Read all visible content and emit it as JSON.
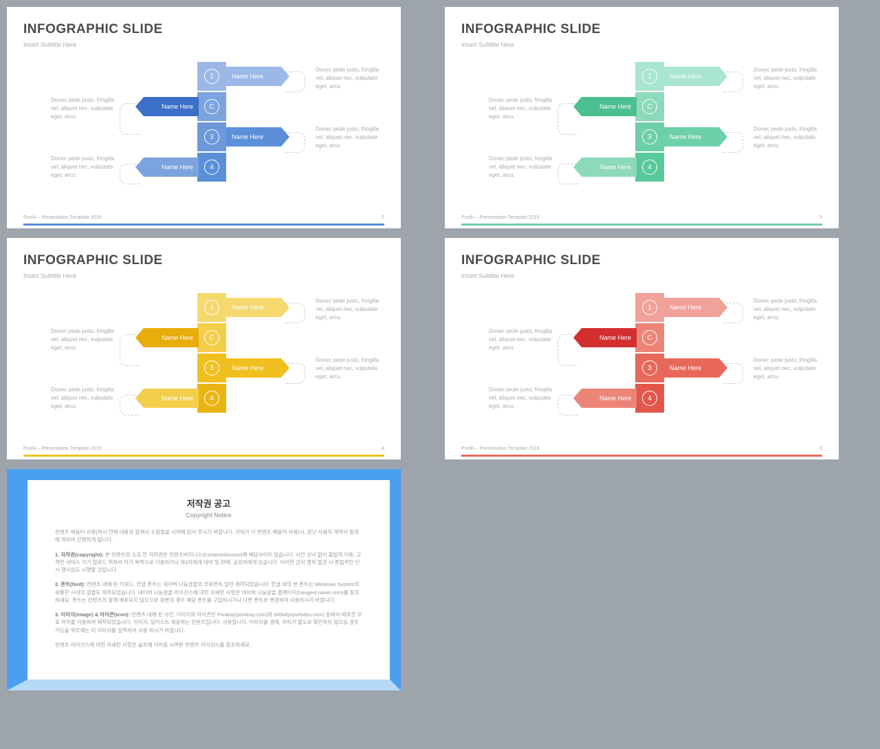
{
  "background_color": "#9ea4ab",
  "slide_common": {
    "title": "INFOGRAPHIC SLIDE",
    "subtitle": "Insert Subtitle Here",
    "footer": "Poziki – Presentation Template 2019",
    "placeholder_text": "Donec pede justo, fringilla vel, aliquet nec, vulputate eget, arcu.",
    "arrow_label": "Name Here"
  },
  "slides": [
    {
      "page_num": "2",
      "accent_line": "#5b8fd8",
      "num_box_colors": [
        "#9bb8e8",
        "#7ba3de",
        "#6d99da",
        "#5b8fd8"
      ],
      "arrow_colors": [
        "#9bb8e8",
        "#3b6fc8",
        "#5b8fd8",
        "#7ba3de"
      ],
      "numbers": [
        "1",
        "C",
        "3",
        "4"
      ]
    },
    {
      "page_num": "3",
      "accent_line": "#6ed0a8",
      "num_box_colors": [
        "#a8e6cf",
        "#8dd9bb",
        "#6ed0a8",
        "#58c99a"
      ],
      "arrow_colors": [
        "#a8e6cf",
        "#4cc090",
        "#6ed0a8",
        "#8dd9bb"
      ],
      "numbers": [
        "1",
        "C",
        "3",
        "4"
      ]
    },
    {
      "page_num": "4",
      "accent_line": "#f0c020",
      "num_box_colors": [
        "#f5d86e",
        "#f3ce4a",
        "#f0c020",
        "#eab512"
      ],
      "arrow_colors": [
        "#f5d86e",
        "#e8ad0a",
        "#f0c020",
        "#f3ce4a"
      ],
      "numbers": [
        "1",
        "C",
        "3",
        "4"
      ]
    },
    {
      "page_num": "5",
      "accent_line": "#e8695c",
      "num_box_colors": [
        "#f0a29a",
        "#ec8578",
        "#e8695c",
        "#e3564a"
      ],
      "arrow_colors": [
        "#f0a29a",
        "#d32f2f",
        "#e8695c",
        "#ec8578"
      ],
      "numbers": [
        "1",
        "C",
        "3",
        "4"
      ]
    }
  ],
  "copyright": {
    "border_top_color": "#4a9ff0",
    "border_bottom_color": "#b5d9f7",
    "title": "저작권 공고",
    "subtitle": "Copyright Notice",
    "para1": "컨텐츠 배움터 사용)하시 전에 내용과 함께서 소장법을 시켜에 읽어 주시기 바랍니다. 귀하가 이 컨텐츠 배움터 사용)시, 장난 사용자 계약서 동의에 의하여 진행하게 됩니다.",
    "para2_bold": "1. 저작권(copyright):",
    "para2": "본 컨텐츠의 소유 한 저작권은 컨텐츠비지니스(Contentsbizeow)에 해당사이트 있습니다. 사전 승낙 없이 불법적 이동, 고객한 서비스 가기 업로드 위하여 자기 목적으로 이용하거나 제3자에게 대여 및 판매, 공유하에게 있습니다. 이러한 금지 행위 발견 시 준법적인 단 시 행사심도 시행할 것입니다.",
    "para3_bold": "2. 폰트(font):",
    "para3": "컨텐츠 내에 된 키보드, 한글 폰트는 네이버 나눔글꼴의 무료폰트 일반 제작되었습니다. 한글 외의 본 폰트는 Windows System의 보통한 시내의 글꼴도 제작되었습니다. 네이버 나눔글꼴 라이선스에 대한 자세한 사항은 네이버 나눔글꼴 홈페이지(hangeul.naver.com)를 참조하세요. 폰트는 컨텐츠의 함께 배포되지 않으므로 원본의 경우 해당 폰트를 구입하시거나 다른 폰트로 변경하여 사용하시기 바랍니다.",
    "para4_bold": "3. 이미지(image) & 아이콘(icon):",
    "para4": "컨텐츠 내에 된 사진, 이미지와 아이콘은 Pixabay(pixabay.com)와 Webdys(webdys.com) 등에서 배포한 무료 저작물 이용하여 제작되었습니다. 이미지, 일러스트 제공하는 컨텐츠입니다. 사용합니다. 이미지를 경에, 귀하가 별도로 확인하지 않으심 경우 가능을 위무에는 미 이미지를 입력하여 사용 하시기 바랍니다.",
    "para5": "컨텐츠 라이선스에 대한 자세한 사항은 솔트에 어려움 시켜된 컨텐츠 라이선스를 참조하세요."
  }
}
